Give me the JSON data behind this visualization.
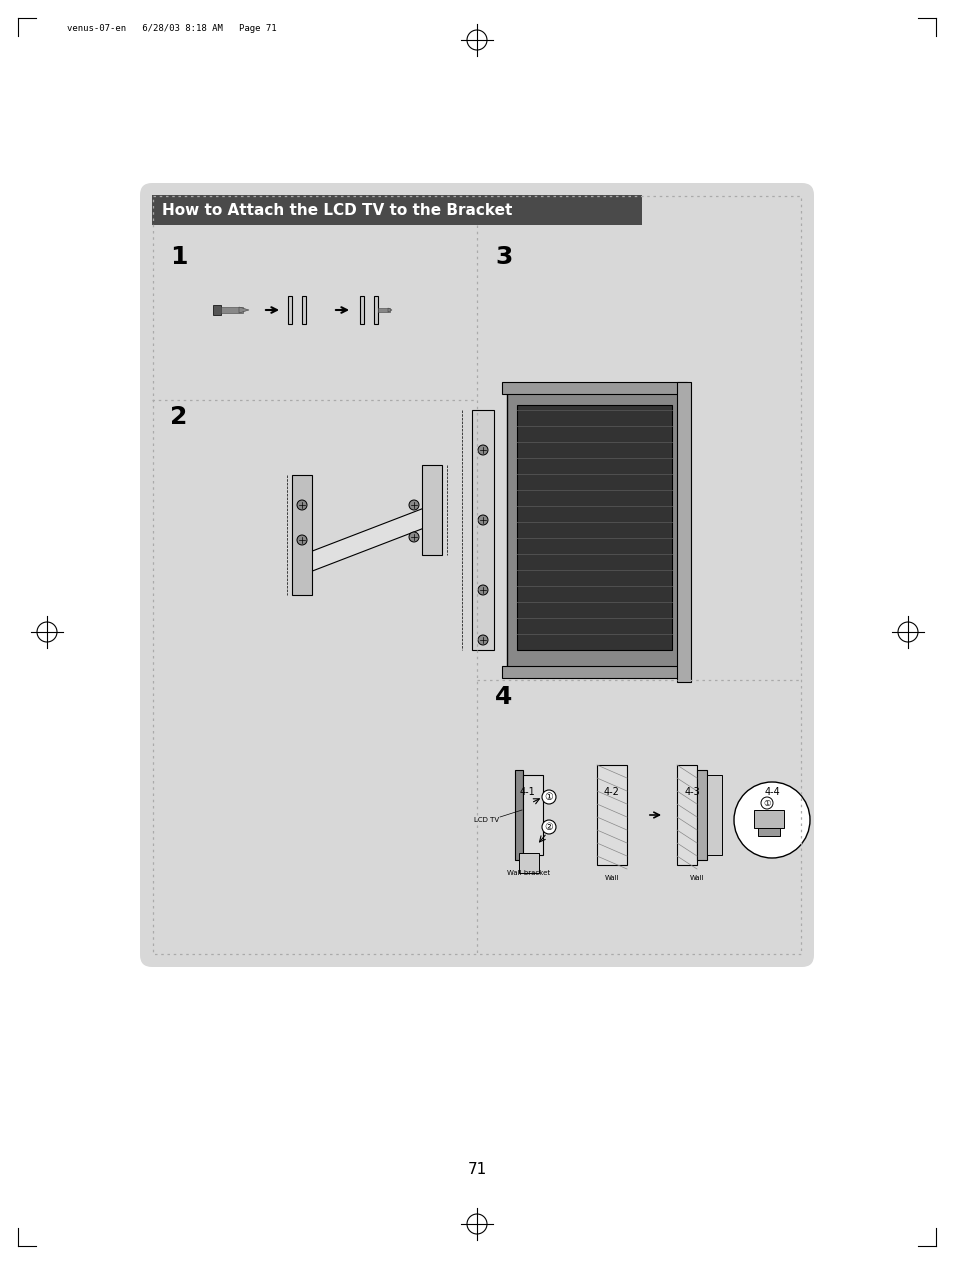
{
  "title": "How to Attach the LCD TV to the Bracket",
  "title_bg": "#4a4a4a",
  "title_fg": "#ffffff",
  "bg_color": "#d8d8d8",
  "page_bg": "#ffffff",
  "page_number": "71",
  "header_text": "venus-07-en   6/28/03 8:18 AM   Page 71",
  "step_labels": [
    "1",
    "2",
    "3",
    "4"
  ],
  "sub_labels": [
    "4-1",
    "4-2",
    "4-3",
    "4-4"
  ],
  "label_color": "#000000",
  "dot_color": "#555555",
  "dash_color": "#999999"
}
